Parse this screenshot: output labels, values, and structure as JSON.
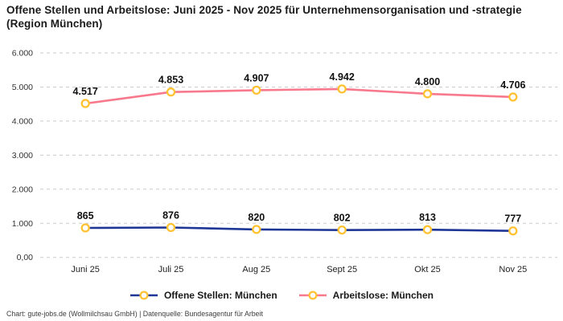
{
  "header": {
    "title": "Offene Stellen und Arbeitslose: Juni 2025 - Nov 2025 für Unternehmensorganisation und -strategie (Region München)"
  },
  "colors": {
    "offene_stellen": "#1e3695",
    "arbeitslose": "#f8788c",
    "marker_stroke": "#ffc233",
    "marker_fill": "#ffffff",
    "grid": "#cccccc"
  },
  "chart_data": {
    "type": "line",
    "title": "Offene Stellen und Arbeitslose: Juni 2025 - Nov 2025 für Unternehmensorganisation und -strategie (Region München)",
    "categories": [
      "Juni 25",
      "Juli 25",
      "Aug 25",
      "Sept 25",
      "Okt 25",
      "Nov 25"
    ],
    "series": [
      {
        "name": "Offene Stellen: München",
        "color_key": "offene_stellen",
        "values": [
          865,
          876,
          820,
          802,
          813,
          777
        ],
        "labels": [
          "865",
          "876",
          "820",
          "802",
          "813",
          "777"
        ]
      },
      {
        "name": "Arbeitslose: München",
        "color_key": "arbeitslose",
        "values": [
          4517,
          4853,
          4907,
          4942,
          4800,
          4706
        ],
        "labels": [
          "4.517",
          "4.853",
          "4.907",
          "4.942",
          "4.800",
          "4.706"
        ]
      }
    ],
    "y_axis": {
      "min": 0,
      "max": 6000,
      "ticks": [
        {
          "value": 0,
          "label": "0,00"
        },
        {
          "value": 1000,
          "label": "1.000"
        },
        {
          "value": 2000,
          "label": "2.000"
        },
        {
          "value": 3000,
          "label": "3.000"
        },
        {
          "value": 4000,
          "label": "4.000"
        },
        {
          "value": 5000,
          "label": "5.000"
        },
        {
          "value": 6000,
          "label": "6.000"
        }
      ]
    },
    "grid": true,
    "legend_position": "bottom"
  },
  "legend": {
    "items": [
      {
        "label": "Offene Stellen: München",
        "color_key": "offene_stellen"
      },
      {
        "label": "Arbeitslose: München",
        "color_key": "arbeitslose"
      }
    ]
  },
  "footer": {
    "credit": "Chart: gute-jobs.de (Wollmilchsau GmbH) | Datenquelle: Bundesagentur für Arbeit"
  }
}
